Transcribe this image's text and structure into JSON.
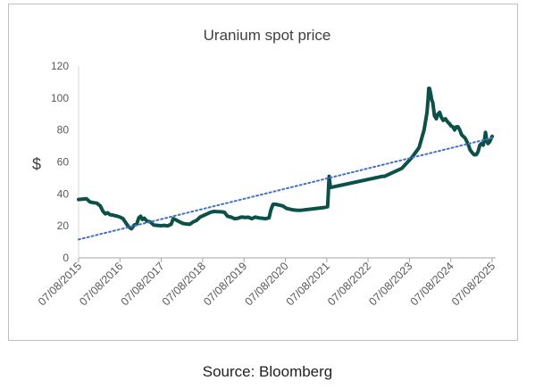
{
  "chart_data": {
    "type": "line",
    "title": "Uranium spot price",
    "ylabel": "$",
    "xlabel": "",
    "ylim": [
      0,
      120
    ],
    "yticks": [
      0,
      20,
      40,
      60,
      80,
      100,
      120
    ],
    "xlim": [
      "2015-08-07",
      "2025-08-07"
    ],
    "xticks": [
      "07/08/2015",
      "07/08/2016",
      "07/08/2017",
      "07/08/2018",
      "07/08/2019",
      "07/08/2020",
      "07/08/2021",
      "07/08/2022",
      "07/08/2023",
      "07/08/2024",
      "07/08/2025"
    ],
    "grid": false,
    "legend": false,
    "series": [
      {
        "kind": "price",
        "color": "#0b5148",
        "points": [
          [
            "2015-08-07",
            36.5
          ],
          [
            "2015-09-15",
            36.8
          ],
          [
            "2015-10-15",
            37
          ],
          [
            "2015-11-15",
            35
          ],
          [
            "2015-12-15",
            34.5
          ],
          [
            "2016-01-15",
            34.2
          ],
          [
            "2016-02-15",
            32.5
          ],
          [
            "2016-03-10",
            29
          ],
          [
            "2016-03-31",
            27.5
          ],
          [
            "2016-04-20",
            28.2
          ],
          [
            "2016-05-10",
            27
          ],
          [
            "2016-06-01",
            26.8
          ],
          [
            "2016-07-01",
            26.3
          ],
          [
            "2016-08-01",
            25.7
          ],
          [
            "2016-09-01",
            24.6
          ],
          [
            "2016-10-01",
            21.5
          ],
          [
            "2016-10-20",
            19.5
          ],
          [
            "2016-11-15",
            18.2
          ],
          [
            "2016-12-10",
            20.5
          ],
          [
            "2017-01-01",
            21
          ],
          [
            "2017-01-20",
            25
          ],
          [
            "2017-02-05",
            26
          ],
          [
            "2017-02-20",
            24
          ],
          [
            "2017-03-10",
            24.8
          ],
          [
            "2017-04-01",
            23
          ],
          [
            "2017-05-01",
            22.5
          ],
          [
            "2017-06-01",
            20.5
          ],
          [
            "2017-07-01",
            20.3
          ],
          [
            "2017-08-01",
            20.1
          ],
          [
            "2017-09-01",
            20.3
          ],
          [
            "2017-10-01",
            20
          ],
          [
            "2017-11-01",
            21
          ],
          [
            "2017-11-20",
            24.5
          ],
          [
            "2017-12-15",
            23.7
          ],
          [
            "2018-01-15",
            22.5
          ],
          [
            "2018-02-15",
            21.5
          ],
          [
            "2018-03-15",
            21.2
          ],
          [
            "2018-04-15",
            21
          ],
          [
            "2018-05-15",
            22.5
          ],
          [
            "2018-06-15",
            23.5
          ],
          [
            "2018-07-15",
            25.5
          ],
          [
            "2018-08-15",
            26.5
          ],
          [
            "2018-09-15",
            27.5
          ],
          [
            "2018-10-15",
            28.5
          ],
          [
            "2018-11-15",
            29
          ],
          [
            "2018-12-15",
            28.9
          ],
          [
            "2019-01-15",
            28.8
          ],
          [
            "2019-02-15",
            28.5
          ],
          [
            "2019-03-15",
            26
          ],
          [
            "2019-04-15",
            25.5
          ],
          [
            "2019-05-15",
            24.5
          ],
          [
            "2019-06-15",
            24.8
          ],
          [
            "2019-07-15",
            25.5
          ],
          [
            "2019-08-15",
            25.3
          ],
          [
            "2019-09-15",
            25.4
          ],
          [
            "2019-10-15",
            24.5
          ],
          [
            "2019-11-15",
            25.5
          ],
          [
            "2019-12-15",
            25
          ],
          [
            "2020-01-15",
            24.8
          ],
          [
            "2020-02-15",
            24.5
          ],
          [
            "2020-03-15",
            25
          ],
          [
            "2020-04-01",
            30
          ],
          [
            "2020-04-20",
            33.5
          ],
          [
            "2020-05-15",
            33.5
          ],
          [
            "2020-06-15",
            33
          ],
          [
            "2020-07-15",
            32.5
          ],
          [
            "2020-08-15",
            31
          ],
          [
            "2020-09-15",
            30.5
          ],
          [
            "2020-10-15",
            30
          ],
          [
            "2020-11-15",
            29.8
          ],
          [
            "2020-12-15",
            29.7
          ],
          [
            "2021-01-15",
            30
          ],
          [
            "2021-07-15",
            31.5
          ],
          [
            "2021-08-15",
            32
          ],
          [
            "2021-08-22",
            42
          ],
          [
            "2021-08-28",
            51
          ],
          [
            "2021-09-08",
            44
          ],
          [
            "2022-12-15",
            51
          ],
          [
            "2023-01-01",
            51
          ],
          [
            "2023-06-01",
            56
          ],
          [
            "2023-09-01",
            63
          ],
          [
            "2023-11-01",
            69
          ],
          [
            "2023-12-15",
            80
          ],
          [
            "2024-01-10",
            91
          ],
          [
            "2024-01-20",
            100
          ],
          [
            "2024-01-25",
            106
          ],
          [
            "2024-02-01",
            106
          ],
          [
            "2024-02-10",
            103
          ],
          [
            "2024-02-20",
            99
          ],
          [
            "2024-03-01",
            97
          ],
          [
            "2024-03-15",
            89
          ],
          [
            "2024-04-01",
            87
          ],
          [
            "2024-04-15",
            90
          ],
          [
            "2024-05-01",
            91
          ],
          [
            "2024-05-15",
            88
          ],
          [
            "2024-06-01",
            86
          ],
          [
            "2024-06-20",
            87
          ],
          [
            "2024-07-10",
            85
          ],
          [
            "2024-07-25",
            84
          ],
          [
            "2024-08-10",
            82.5
          ],
          [
            "2024-08-25",
            82
          ],
          [
            "2024-09-10",
            80
          ],
          [
            "2024-09-25",
            82
          ],
          [
            "2024-10-10",
            82
          ],
          [
            "2024-10-25",
            80
          ],
          [
            "2024-11-10",
            77
          ],
          [
            "2024-11-25",
            76
          ],
          [
            "2024-12-10",
            75
          ],
          [
            "2024-12-25",
            73
          ],
          [
            "2025-01-10",
            70.5
          ],
          [
            "2025-01-25",
            67.5
          ],
          [
            "2025-02-10",
            66
          ],
          [
            "2025-03-01",
            64.5
          ],
          [
            "2025-03-20",
            64.5
          ],
          [
            "2025-04-05",
            66.5
          ],
          [
            "2025-04-20",
            70.5
          ],
          [
            "2025-05-05",
            71.5
          ],
          [
            "2025-05-20",
            70.5
          ],
          [
            "2025-06-01",
            74
          ],
          [
            "2025-06-10",
            78.5
          ],
          [
            "2025-06-20",
            74
          ],
          [
            "2025-07-01",
            71.5
          ],
          [
            "2025-07-15",
            72.5
          ],
          [
            "2025-07-25",
            74
          ],
          [
            "2025-08-07",
            76
          ]
        ]
      },
      {
        "kind": "trend",
        "color": "#4472c4",
        "points": [
          [
            "2015-08-07",
            11.5
          ],
          [
            "2025-08-07",
            75
          ]
        ]
      }
    ]
  },
  "caption": {
    "source": "Source: Bloomberg"
  }
}
